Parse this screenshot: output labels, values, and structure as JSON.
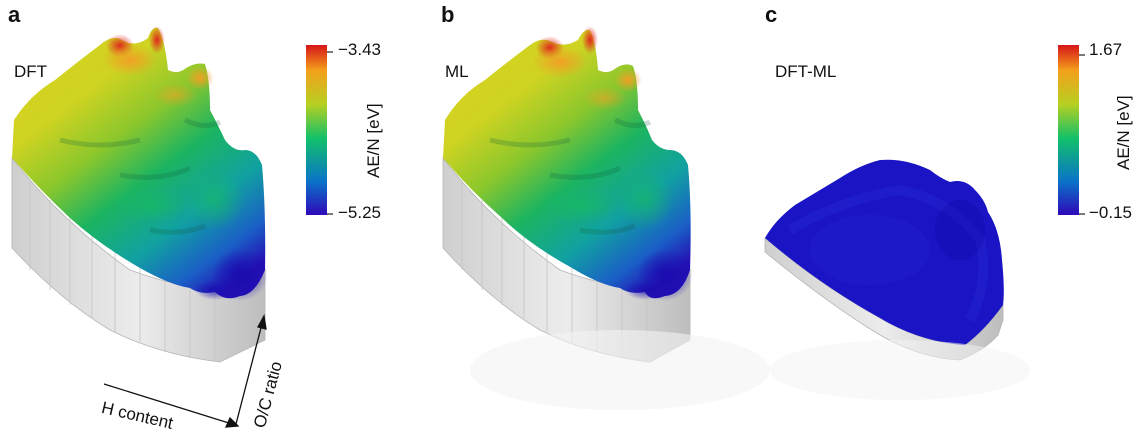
{
  "chart_data": [
    {
      "type": "surface",
      "panel": "a",
      "label": "DFT",
      "colorbar": {
        "title": "AE/N [eV]",
        "max": -3.43,
        "min": -5.25
      },
      "axes": {
        "x_label": "H content",
        "y_label": "O/C ratio"
      },
      "colormap": [
        "#2f08b8",
        "#0a74c8",
        "#12c06a",
        "#b6d021",
        "#f4a01b",
        "#d61418"
      ]
    },
    {
      "type": "surface",
      "panel": "b",
      "label": "ML"
    },
    {
      "type": "surface",
      "panel": "c",
      "label": "DFT-ML",
      "colorbar": {
        "title": "AE/N [eV]",
        "max": 1.67,
        "min": -0.15
      }
    }
  ],
  "text": {
    "letter_a": "a",
    "letter_b": "b",
    "letter_c": "c",
    "label_a": "DFT",
    "label_b": "ML",
    "label_c": "DFT-ML",
    "cb1_max": "−3.43",
    "cb1_min": "−5.25",
    "cb1_title": "AE/N [eV]",
    "cb2_max": "1.67",
    "cb2_min": "−0.15",
    "cb2_title": "AE/N [eV]",
    "x_axis": "H content",
    "y_axis": "O/C ratio"
  }
}
